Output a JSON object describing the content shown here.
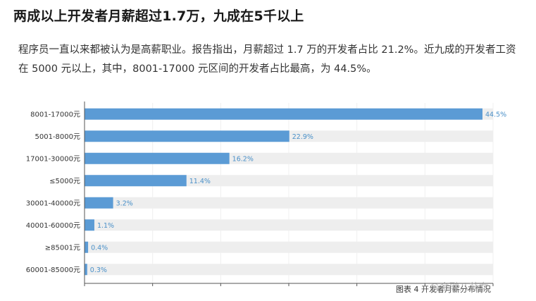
{
  "article": {
    "title": "两成以上开发者月薪超过1.7万，九成在5千以上",
    "paragraph": "程序员一直以来都被认为是高薪职业。报告指出，月薪超过 1.7 万的开发者占比 21.2%。近九成的开发者工资在 5000 元以上，其中，8001-17000 元区间的开发者占比最高，为 44.5%。"
  },
  "chart_data": {
    "type": "bar",
    "orientation": "horizontal",
    "categories": [
      "8001-17000元",
      "5001-8000元",
      "17001-30000元",
      "≤5000元",
      "30001-40000元",
      "40001-60000元",
      "≥85001元",
      "60001-85000元"
    ],
    "values": [
      44.5,
      22.9,
      16.2,
      11.4,
      3.2,
      1.1,
      0.4,
      0.3
    ],
    "value_labels": [
      "44.5%",
      "22.9%",
      "16.2%",
      "11.4%",
      "3.2%",
      "1.1%",
      "0.4%",
      "0.3%"
    ],
    "xlim": [
      0,
      44.5
    ],
    "bar_color": "#5b9bd5",
    "track_color": "#eeeeee",
    "grid": true,
    "title": "",
    "xlabel": "",
    "ylabel": ""
  },
  "caption": {
    "text": "图表 4",
    "obscured_text": "开发者月薪分布情况"
  },
  "watermark": {
    "text": "@金融八卦女"
  }
}
